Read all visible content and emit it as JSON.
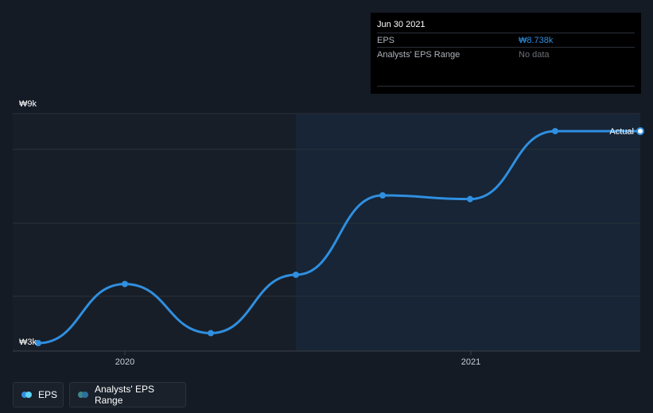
{
  "chart_data": {
    "type": "line",
    "title": "EPS",
    "currency_symbol": "₩",
    "x": [
      2019.75,
      2020.0,
      2020.25,
      2020.5,
      2020.75,
      2021.0,
      2021.25,
      2021.5
    ],
    "series": [
      {
        "name": "EPS",
        "values": [
          3.0,
          4.6,
          3.27,
          4.85,
          7.0,
          6.9,
          8.74,
          8.738
        ]
      }
    ],
    "ylim": [
      3,
      9
    ],
    "y_tick_labels": [
      "₩9k",
      "₩3k"
    ],
    "x_tick_labels": [
      "2020",
      "2021"
    ],
    "forecast_region_start": 2020.5,
    "end_label": "Actual",
    "colors": {
      "line": "#2f8fe0",
      "range": "#3b8a8a",
      "grid": "#2a313b"
    }
  },
  "tooltip": {
    "date": "Jun 30 2021",
    "rows": [
      {
        "label": "EPS",
        "value": "₩8.738k"
      },
      {
        "label": "Analysts' EPS Range",
        "value": "No data"
      }
    ]
  },
  "legend": {
    "items": [
      {
        "label": "EPS",
        "colors": [
          "#2f8fe0",
          "#5fd3f3"
        ]
      },
      {
        "label": "Analysts' EPS Range",
        "colors": [
          "#3b8a8a",
          "#2f6f9f"
        ]
      }
    ]
  }
}
